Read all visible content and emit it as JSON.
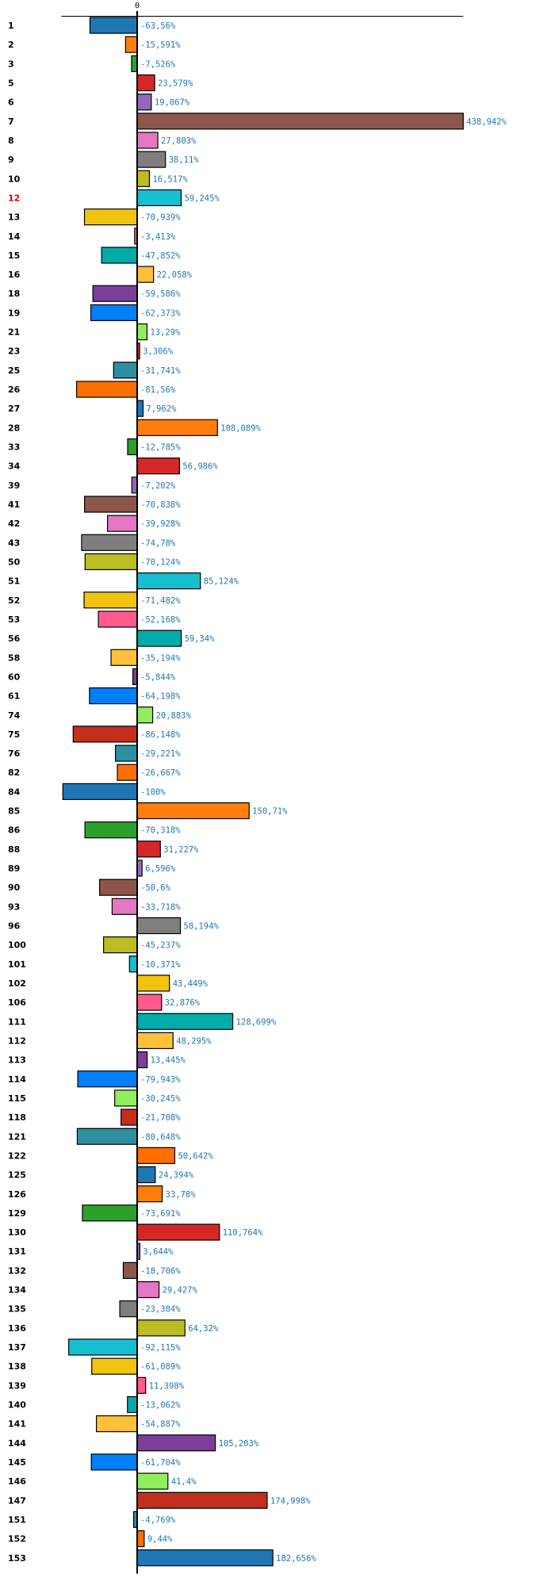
{
  "chart_data": {
    "type": "bar",
    "orientation": "horizontal",
    "title": "",
    "xlabel": "",
    "ylabel": "",
    "x_tick_labels": [
      "0"
    ],
    "value_suffix": "%",
    "decimal_separator": ",",
    "highlighted_category": "12",
    "highlight_color": "#e00000",
    "xlim": [
      -100,
      438.942
    ],
    "grid": false,
    "legend": "none",
    "palette": [
      "#1f77b4",
      "#ff7f0e",
      "#2ca02c",
      "#d62728",
      "#9467bd",
      "#8c564b",
      "#e377c2",
      "#7f7f7f",
      "#bcbd22",
      "#17becf",
      "#f1c40f",
      "#ff5c8d",
      "#00aba9",
      "#ffc13b",
      "#7b3f99",
      "#007fff",
      "#90ee5f",
      "#c42f1d",
      "#2e8fa0",
      "#ff6f00"
    ],
    "value_label_color": "#1f77b4",
    "categories": [
      "1",
      "2",
      "3",
      "5",
      "6",
      "7",
      "8",
      "9",
      "10",
      "12",
      "13",
      "14",
      "15",
      "16",
      "18",
      "19",
      "21",
      "23",
      "25",
      "26",
      "27",
      "28",
      "33",
      "34",
      "39",
      "41",
      "42",
      "43",
      "50",
      "51",
      "52",
      "53",
      "56",
      "58",
      "60",
      "61",
      "74",
      "75",
      "76",
      "82",
      "84",
      "85",
      "86",
      "88",
      "89",
      "90",
      "93",
      "96",
      "100",
      "101",
      "102",
      "106",
      "111",
      "112",
      "113",
      "114",
      "115",
      "118",
      "121",
      "122",
      "125",
      "126",
      "129",
      "130",
      "131",
      "132",
      "134",
      "135",
      "136",
      "137",
      "138",
      "139",
      "140",
      "141",
      "144",
      "145",
      "146",
      "147",
      "151",
      "152",
      "153"
    ],
    "values": [
      -63.56,
      -15.591,
      -7.526,
      23.579,
      19.067,
      438.942,
      27.803,
      38.11,
      16.517,
      59.245,
      -70.939,
      -3.413,
      -47.852,
      22.058,
      -59.586,
      -62.373,
      13.29,
      3.306,
      -31.741,
      -81.56,
      7.962,
      108.089,
      -12.785,
      56.986,
      -7.202,
      -70.838,
      -39.928,
      -74.78,
      -70.124,
      85.124,
      -71.482,
      -52.168,
      59.34,
      -35.194,
      -5.844,
      -64.198,
      20.883,
      -86.148,
      -29.221,
      -26.667,
      -100,
      150.71,
      -70.318,
      31.227,
      6.596,
      -50.6,
      -33.718,
      58.194,
      -45.237,
      -10.371,
      43.449,
      32.876,
      128.699,
      48.295,
      13.445,
      -79.943,
      -30.245,
      -21.708,
      -80.648,
      50.642,
      24.394,
      33.78,
      -73.691,
      110.764,
      3.644,
      -18.706,
      29.427,
      -23.384,
      64.32,
      -92.115,
      -61.089,
      11.398,
      -13.062,
      -54.887,
      105.203,
      -61.704,
      41.4,
      174.998,
      -4.769,
      9.44,
      182.656
    ]
  }
}
